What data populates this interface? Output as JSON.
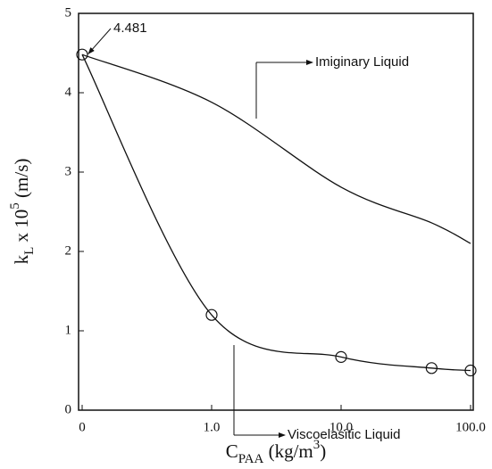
{
  "chart_data": {
    "type": "line",
    "xlabel": [
      "C",
      "PAA",
      " (kg/m",
      "3",
      ")"
    ],
    "ylabel": [
      "k",
      "L",
      " x 10",
      "5",
      " (m/s)"
    ],
    "x": [
      0,
      1,
      10,
      50,
      100
    ],
    "series": [
      {
        "name": "Viscoelasitic Liquid",
        "color": "#111111",
        "markers": true,
        "values": [
          4.481,
          1.2,
          0.67,
          0.53,
          0.5
        ]
      },
      {
        "name": "Imiginary Liquid",
        "color": "#111111",
        "markers": false,
        "values": [
          4.481,
          3.88,
          2.81,
          2.36,
          2.1
        ]
      }
    ],
    "xscale": "log",
    "xlim": [
      0,
      100
    ],
    "xticks": [
      0,
      {
        "value": 1,
        "label": "1.0"
      },
      {
        "value": 10,
        "label": "10.0"
      },
      {
        "value": 100,
        "label": "100.0"
      }
    ],
    "ylim": [
      0,
      5
    ],
    "yticks": [
      0,
      1,
      2,
      3,
      4,
      5
    ],
    "grid": false
  }
}
